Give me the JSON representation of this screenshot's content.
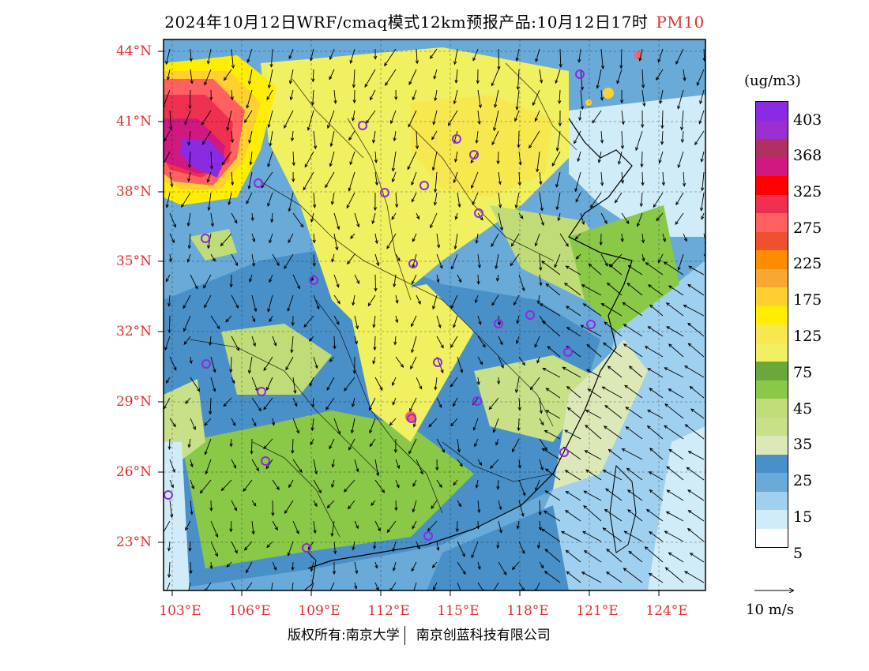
{
  "title": {
    "text": "2024年10月12日WRF/cmaq模式12km预报产品:10月12日17时",
    "variable": "PM10"
  },
  "map": {
    "lat_labels": [
      "44°N",
      "41°N",
      "38°N",
      "35°N",
      "32°N",
      "29°N",
      "26°N",
      "23°N"
    ],
    "lon_labels": [
      "103°E",
      "106°E",
      "109°E",
      "112°E",
      "115°E",
      "118°E",
      "121°E",
      "124°E"
    ],
    "colors": {
      "axis_label": "#e03030",
      "site_marker": "#8a2be2"
    }
  },
  "legend": {
    "units": "(ug/m3)",
    "labels": [
      "403",
      "368",
      "325",
      "275",
      "225",
      "175",
      "125",
      "75",
      "45",
      "35",
      "25",
      "15",
      "5"
    ],
    "colors": [
      "#8a2be2",
      "#9b30d0",
      "#b03060",
      "#d01880",
      "#ff0000",
      "#f03050",
      "#ff6060",
      "#f05030",
      "#ff8c00",
      "#f8a830",
      "#ffd030",
      "#ffee00",
      "#f8e850",
      "#f0f060",
      "#6aa83a",
      "#8ac848",
      "#c0dc78",
      "#c8e088",
      "#dce8b8",
      "#4a90c8",
      "#6aaad8",
      "#a0d0f0",
      "#d0ecf8",
      "#ffffff"
    ],
    "vector_reference": "10 m/s"
  },
  "footer": {
    "copyright": "版权所有:南京大学",
    "company": "南京创蓝科技有限公司"
  }
}
